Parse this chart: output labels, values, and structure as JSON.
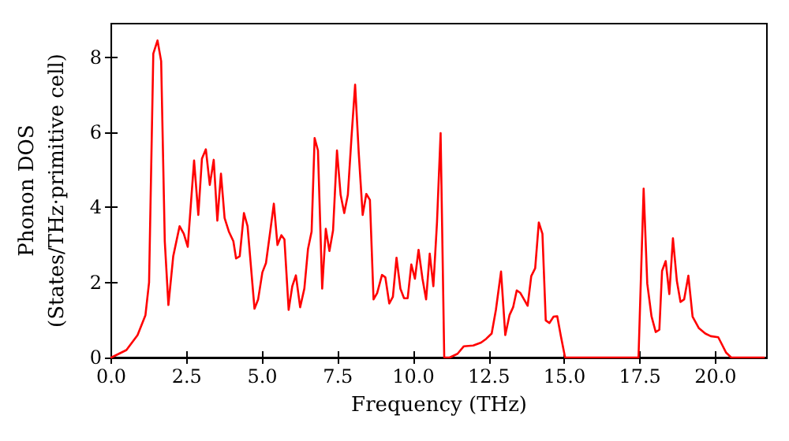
{
  "chart_data": {
    "type": "line",
    "xlabel": "Frequency (THz)",
    "ylabel": "Phonon DOS\n(States/THz·primitive cell)",
    "xlim": [
      0,
      21.7
    ],
    "ylim": [
      0,
      8.9
    ],
    "xticks": [
      {
        "value": 0,
        "label": "0.0"
      },
      {
        "value": 2.5,
        "label": "2.5"
      },
      {
        "value": 5,
        "label": "5.0"
      },
      {
        "value": 7.5,
        "label": "7.5"
      },
      {
        "value": 10,
        "label": "10.0"
      },
      {
        "value": 12.5,
        "label": "12.5"
      },
      {
        "value": 15,
        "label": "15.0"
      },
      {
        "value": 17.5,
        "label": "17.5"
      },
      {
        "value": 20,
        "label": "20.0"
      }
    ],
    "yticks": [
      0,
      2,
      4,
      6,
      8
    ],
    "grid": false,
    "marker": "none",
    "line_style": "solid",
    "series": [
      {
        "color": "#ff0000",
        "x": [
          0,
          0.5,
          0.87,
          1.13,
          1.25,
          1.39,
          1.53,
          1.65,
          1.77,
          1.89,
          2.05,
          2.26,
          2.4,
          2.53,
          2.74,
          2.88,
          3.0,
          3.13,
          3.26,
          3.39,
          3.51,
          3.63,
          3.75,
          3.89,
          4.04,
          4.13,
          4.25,
          4.39,
          4.51,
          4.74,
          4.86,
          5.0,
          5.12,
          5.26,
          5.38,
          5.5,
          5.63,
          5.73,
          5.87,
          5.99,
          6.11,
          6.25,
          6.39,
          6.51,
          6.63,
          6.73,
          6.84,
          6.98,
          7.1,
          7.22,
          7.34,
          7.47,
          7.59,
          7.71,
          7.83,
          7.95,
          8.07,
          8.19,
          8.32,
          8.44,
          8.56,
          8.68,
          8.8,
          8.96,
          9.07,
          9.2,
          9.32,
          9.44,
          9.57,
          9.69,
          9.81,
          9.93,
          10.05,
          10.17,
          10.3,
          10.42,
          10.54,
          10.66,
          10.78,
          10.9,
          11.02,
          11.2,
          11.46,
          11.67,
          11.98,
          12.24,
          12.41,
          12.59,
          12.73,
          12.9,
          13.04,
          13.18,
          13.3,
          13.42,
          13.54,
          13.66,
          13.78,
          13.9,
          14.03,
          14.15,
          14.27,
          14.38,
          14.5,
          14.64,
          14.76,
          14.88,
          15.02,
          17.45,
          17.62,
          17.74,
          17.88,
          18.02,
          18.14,
          18.23,
          18.35,
          18.47,
          18.59,
          18.72,
          18.84,
          18.96,
          19.1,
          19.24,
          19.45,
          19.66,
          19.84,
          20.09,
          20.23,
          20.35,
          20.52,
          21.6
        ],
        "values": [
          0,
          0.2,
          0.6,
          1.13,
          2.0,
          8.1,
          8.45,
          7.9,
          3.1,
          1.4,
          2.7,
          3.5,
          3.3,
          2.95,
          5.25,
          3.8,
          5.3,
          5.55,
          4.6,
          5.27,
          3.65,
          4.9,
          3.72,
          3.36,
          3.1,
          2.64,
          2.7,
          3.85,
          3.5,
          1.3,
          1.55,
          2.27,
          2.52,
          3.36,
          4.1,
          3.0,
          3.26,
          3.15,
          1.27,
          1.9,
          2.19,
          1.34,
          1.84,
          2.89,
          3.36,
          5.85,
          5.52,
          1.84,
          3.43,
          2.84,
          3.39,
          5.52,
          4.34,
          3.85,
          4.34,
          5.87,
          7.27,
          5.45,
          3.8,
          4.36,
          4.2,
          1.55,
          1.72,
          2.2,
          2.14,
          1.44,
          1.62,
          2.66,
          1.83,
          1.58,
          1.58,
          2.48,
          2.1,
          2.87,
          2.1,
          1.55,
          2.77,
          1.9,
          3.6,
          5.98,
          0,
          0,
          0.1,
          0.3,
          0.32,
          0.4,
          0.5,
          0.64,
          1.27,
          2.29,
          0.6,
          1.13,
          1.34,
          1.79,
          1.72,
          1.55,
          1.38,
          2.17,
          2.38,
          3.6,
          3.3,
          0.99,
          0.92,
          1.09,
          1.1,
          0.57,
          0,
          0,
          4.5,
          1.97,
          1.1,
          0.68,
          0.74,
          2.31,
          2.57,
          1.69,
          3.18,
          2.04,
          1.48,
          1.55,
          2.18,
          1.09,
          0.78,
          0.64,
          0.57,
          0.54,
          0.32,
          0.13,
          0,
          0
        ]
      }
    ]
  }
}
